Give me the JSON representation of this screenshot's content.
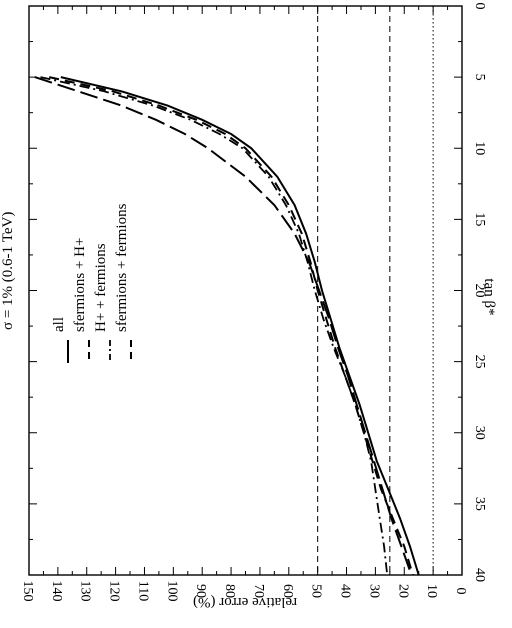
{
  "chart_data": {
    "type": "line",
    "title": "σ = 1%   (0.6-1 TeV)",
    "xlabel": "tan β*",
    "ylabel": "relative error (%)",
    "xlim": [
      0,
      40
    ],
    "ylim": [
      0,
      150
    ],
    "x_ticks": [
      "0",
      "5",
      "10",
      "15",
      "20",
      "25",
      "30",
      "35",
      "40"
    ],
    "y_ticks": [
      "0",
      "10",
      "20",
      "30",
      "40",
      "50",
      "60",
      "70",
      "80",
      "90",
      "100",
      "110",
      "120",
      "130",
      "140",
      "150"
    ],
    "grid": false,
    "legend_position": "upper-left",
    "reference_lines_y": [
      {
        "y": 50,
        "style": "dashed"
      },
      {
        "y": 25,
        "style": "dashed"
      },
      {
        "y": 10,
        "style": "dotted"
      }
    ],
    "series": [
      {
        "name": "all",
        "style": "solid",
        "x": [
          5,
          6,
          7,
          8,
          9,
          10,
          12,
          14,
          16,
          18,
          20,
          22,
          24,
          26,
          28,
          30,
          32,
          34,
          36,
          38,
          40
        ],
        "y": [
          139,
          118,
          102,
          90,
          80,
          73,
          64,
          58,
          54,
          51,
          48.5,
          45.5,
          42.5,
          39,
          35.5,
          32.5,
          29.5,
          25.5,
          21.5,
          18,
          15
        ]
      },
      {
        "name": "sfermions + H+",
        "style": "dashed",
        "x": [
          5,
          6,
          7,
          8,
          9,
          10,
          12,
          14,
          16,
          18,
          20,
          22,
          24,
          26,
          28,
          30,
          32,
          34,
          36,
          38,
          40
        ],
        "y": [
          143,
          121,
          105,
          92,
          82,
          75,
          66,
          60,
          55.5,
          52.5,
          50,
          47,
          44,
          40.5,
          37,
          34,
          31,
          28,
          24,
          20,
          17
        ]
      },
      {
        "name": "H+ + fermions",
        "style": "dash-dot",
        "x": [
          5,
          6,
          7,
          8,
          9,
          10,
          12,
          14,
          16,
          18,
          20,
          22,
          24,
          26,
          28,
          30,
          32,
          34,
          36,
          38,
          39.8
        ],
        "y": [
          146,
          124,
          107,
          94,
          84,
          76,
          67,
          61,
          56.5,
          53.5,
          51,
          48,
          44.5,
          40.5,
          37,
          34,
          31.5,
          30,
          28.5,
          27,
          26
        ]
      },
      {
        "name": "sfermions + fermions",
        "style": "long-dash",
        "x": [
          5,
          6,
          7,
          8,
          9,
          10,
          12,
          14,
          16,
          18,
          20,
          22,
          24,
          26,
          28,
          30,
          32,
          34,
          36,
          38,
          40
        ],
        "y": [
          148,
          133,
          118,
          106,
          96,
          88,
          75,
          65,
          58,
          53,
          49.5,
          46,
          43,
          39.5,
          36.5,
          33.5,
          30.5,
          27.5,
          24.5,
          21,
          17.5
        ]
      }
    ]
  }
}
